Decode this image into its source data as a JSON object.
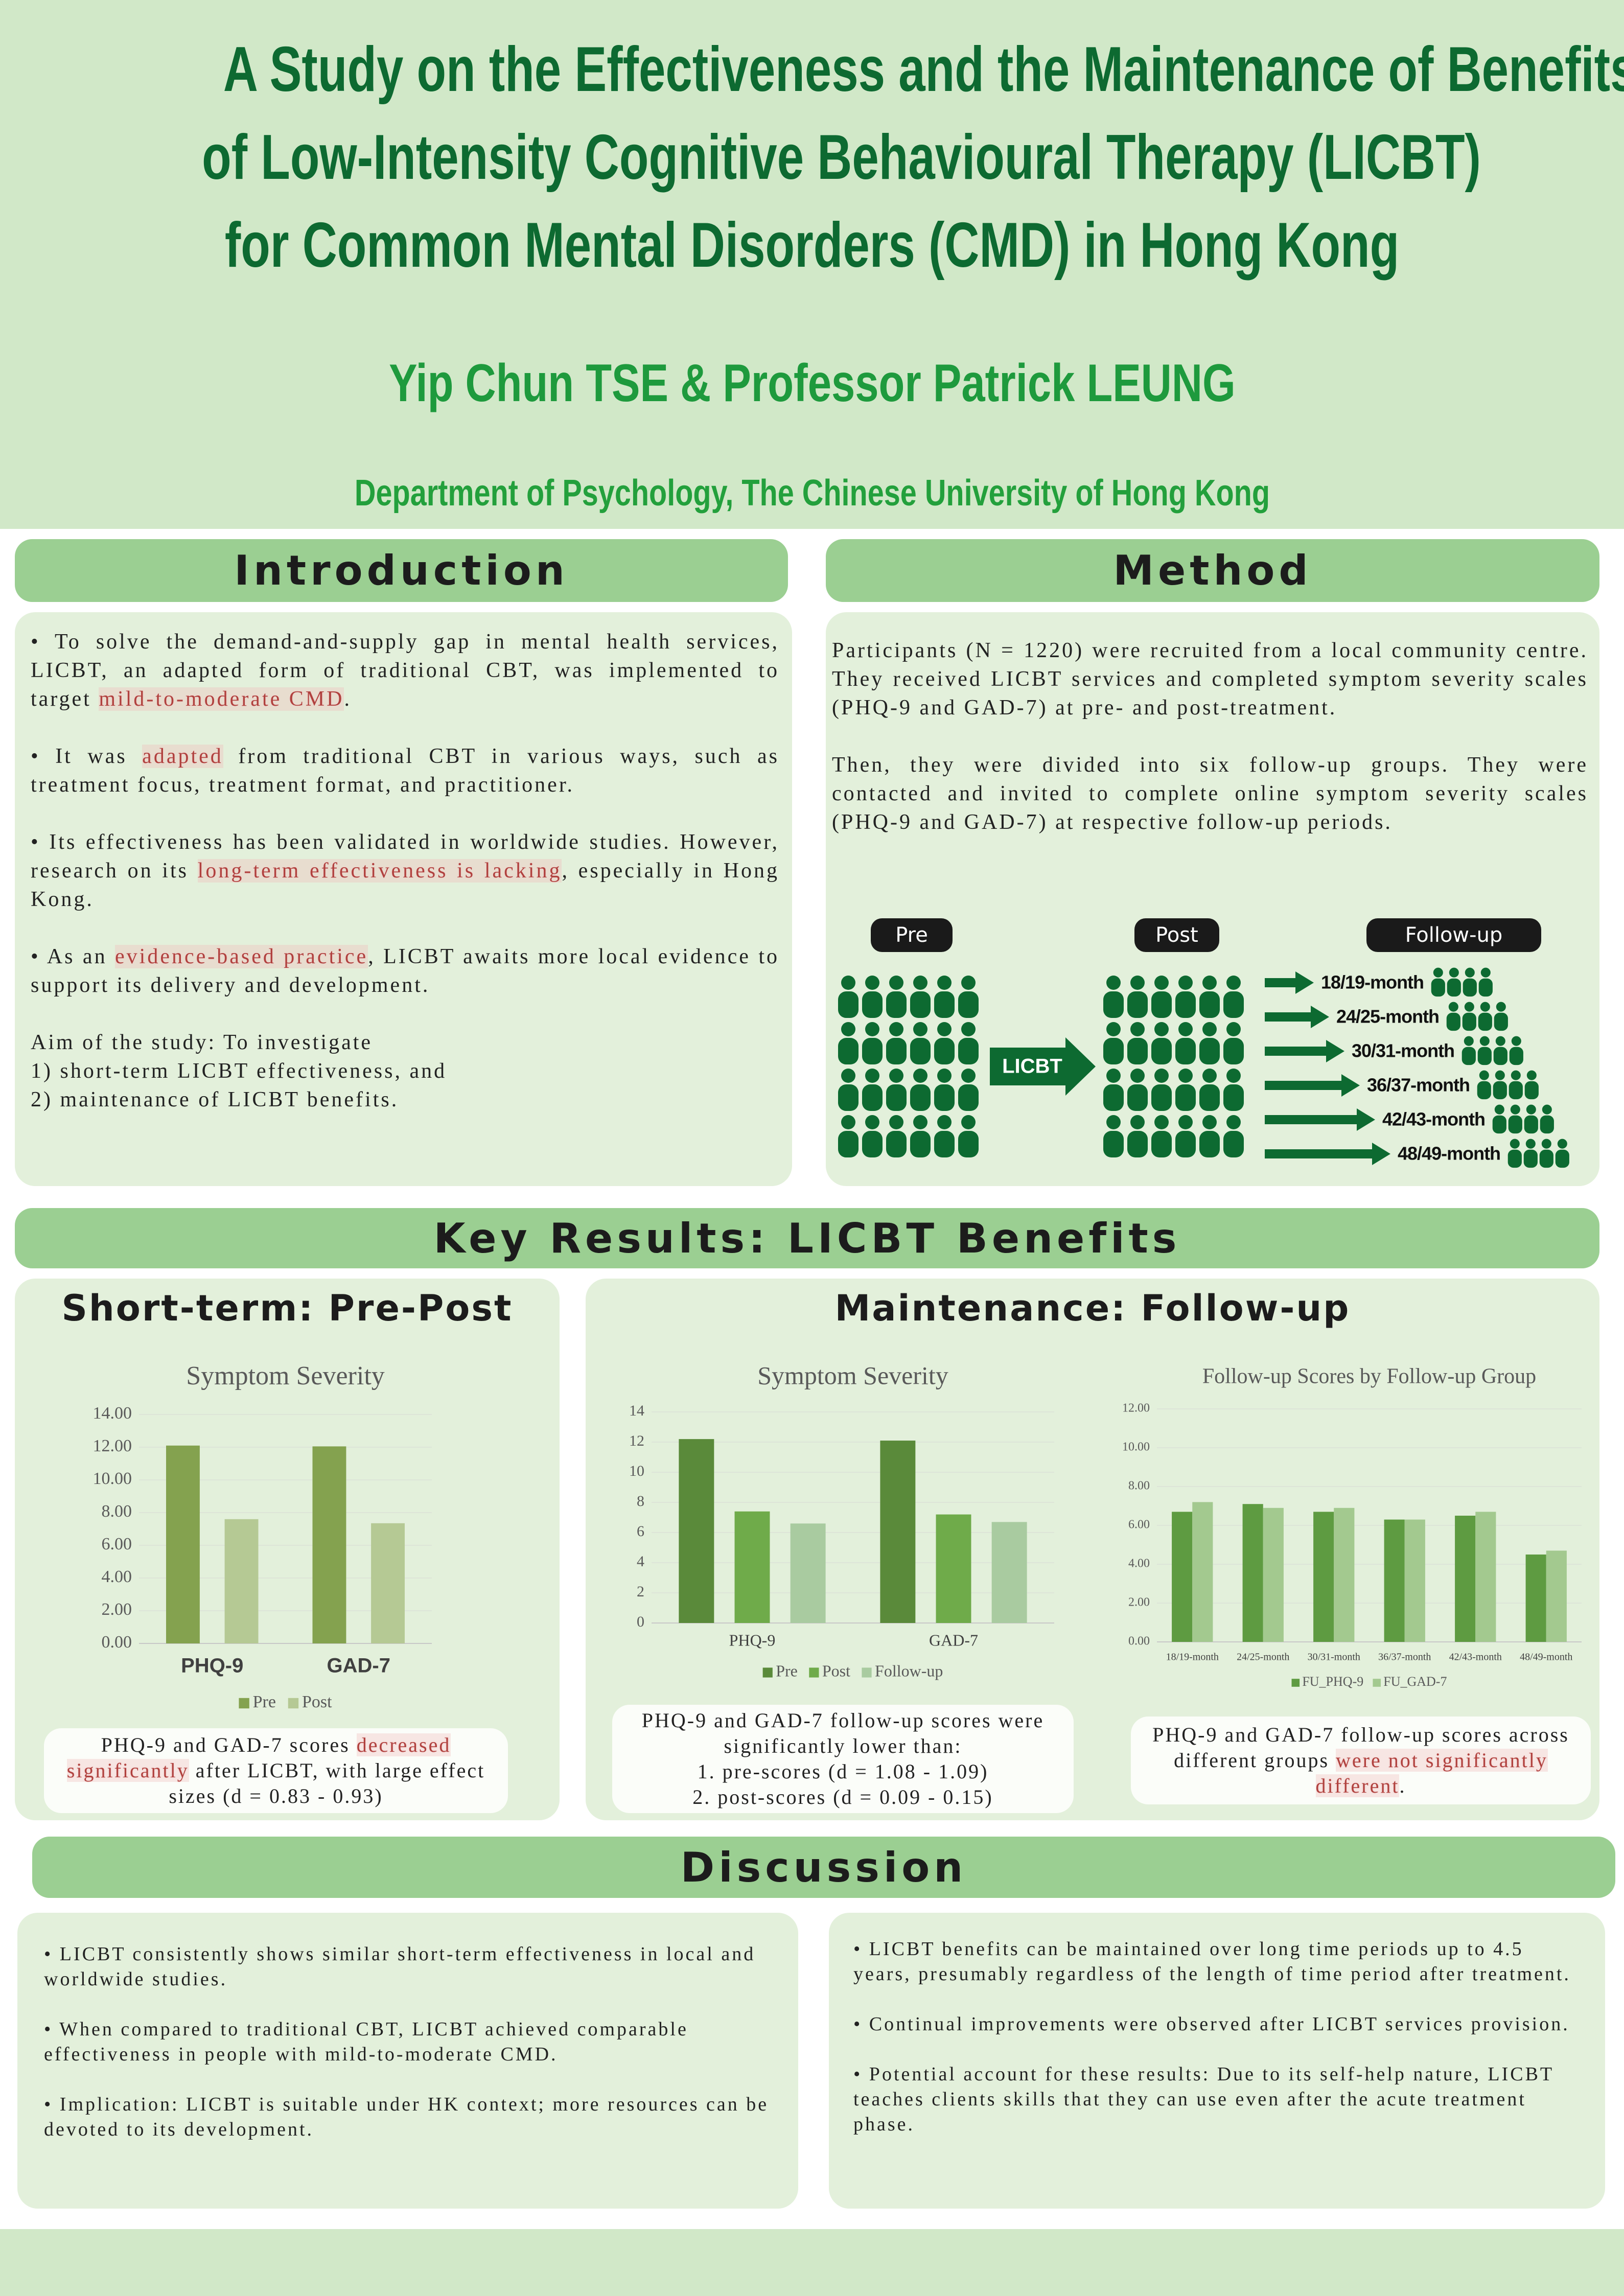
{
  "header": {
    "title_lines": [
      "A Study on the Effectiveness and the Maintenance of Benefits",
      "of Low-Intensity Cognitive Behavioural Therapy (LICBT)",
      "for Common Mental Disorders (CMD) in Hong Kong"
    ],
    "authors": "Yip Chun TSE & Professor Patrick LEUNG",
    "affiliation": "Department of Psychology, The Chinese University of Hong Kong"
  },
  "introduction": {
    "heading": "Introduction",
    "paragraphs": [
      [
        "• To solve the demand-and-supply gap in mental health services, LICBT, an adapted form of traditional CBT, was implemented to target ",
        {
          "text": "mild-to-moderate CMD",
          "highlight": true
        },
        "."
      ],
      [
        "• It was ",
        {
          "text": "adapted",
          "highlight": true
        },
        " from traditional CBT in various ways, such as treatment focus, treatment format, and practitioner."
      ],
      [
        "• Its effectiveness has been validated in worldwide studies. However, research on its ",
        {
          "text": "long-term effectiveness is lacking",
          "highlight": true
        },
        ", especially in Hong Kong."
      ],
      [
        "• As an ",
        {
          "text": "evidence-based practice",
          "highlight": true
        },
        ", LICBT awaits more local evidence to support its delivery and development."
      ]
    ],
    "aim_lines": [
      "Aim of the study: To investigate",
      "1) short-term LICBT effectiveness, and",
      "2) maintenance of LICBT benefits."
    ]
  },
  "method": {
    "heading": "Method",
    "paragraphs": [
      "Participants (N = 1220) were recruited from a local community centre. They received LICBT services and completed symptom severity scales (PHQ-9 and GAD-7) at pre- and post-treatment.",
      "Then, they were divided into six follow-up groups. They were contacted and invited to complete online symptom severity scales (PHQ-9 and GAD-7) at respective follow-up periods."
    ],
    "diagram": {
      "pre_label": "Pre",
      "post_label": "Post",
      "followup_label": "Follow-up",
      "arrow_label": "LICBT",
      "followup_groups": [
        "18/19-month",
        "24/25-month",
        "30/31-month",
        "36/37-month",
        "42/43-month",
        "48/49-month"
      ]
    }
  },
  "results": {
    "heading": "Key Results: LICBT Benefits",
    "short_term": {
      "heading": "Short-term: Pre-Post",
      "caption": [
        "PHQ-9 and GAD-7 scores ",
        {
          "text": "decreased significantly",
          "highlight": true
        },
        " after LICBT, with large effect sizes (d = 0.83 - 0.93)"
      ]
    },
    "maintenance": {
      "heading": "Maintenance: Follow-up",
      "caption_lines": [
        "PHQ-9 and GAD-7 follow-up scores were significantly lower than:",
        "1.  pre-scores (d = 1.08 - 1.09)",
        "2.  post-scores (d = 0.09 - 0.15)"
      ],
      "follow_up_caption": [
        "PHQ-9 and GAD-7 follow-up scores across different groups ",
        {
          "text": "were not significantly different",
          "highlight": true
        },
        "."
      ]
    }
  },
  "discussion": {
    "heading": "Discussion",
    "left": [
      "• LICBT consistently shows similar short-term effectiveness in local and worldwide studies.",
      "• When compared to traditional CBT, LICBT achieved comparable effectiveness in people with mild-to-moderate CMD.",
      "• Implication: LICBT is suitable under HK context; more resources can be devoted to its development."
    ],
    "right": [
      "• LICBT benefits can be maintained over long time periods up to 4.5 years, presumably regardless of the length of time period after treatment.",
      "• Continual improvements were observed after LICBT services provision.",
      "• Potential account for these results: Due to its self-help nature, LICBT teaches clients skills that they can use even after the acute treatment phase."
    ]
  },
  "chart_data": [
    {
      "type": "bar",
      "title": "Symptom Severity",
      "categories": [
        "PHQ-9",
        "GAD-7"
      ],
      "series": [
        {
          "name": "Pre",
          "color": "#84a24f",
          "values": [
            12.1,
            12.05
          ]
        },
        {
          "name": "Post",
          "color": "#b5c994",
          "values": [
            7.6,
            7.35
          ]
        }
      ],
      "ylim": [
        0,
        14
      ],
      "yticks": [
        {
          "value": 0,
          "label": "0.00"
        },
        {
          "value": 2,
          "label": "2.00"
        },
        {
          "value": 4,
          "label": "4.00"
        },
        {
          "value": 6,
          "label": "6.00"
        },
        {
          "value": 8,
          "label": "8.00"
        },
        {
          "value": 10,
          "label": "10.00"
        },
        {
          "value": 12,
          "label": "12.00"
        },
        {
          "value": 14,
          "label": "14.00"
        }
      ],
      "grid": true,
      "legend": "bottom"
    },
    {
      "type": "bar",
      "title": "Symptom Severity",
      "categories": [
        "PHQ-9",
        "GAD-7"
      ],
      "series": [
        {
          "name": "Pre",
          "color": "#5a8a3a",
          "values": [
            12.2,
            12.1
          ]
        },
        {
          "name": "Post",
          "color": "#6fab4a",
          "values": [
            7.4,
            7.2
          ]
        },
        {
          "name": "Follow-up",
          "color": "#a9cba0",
          "values": [
            6.6,
            6.7
          ]
        }
      ],
      "ylim": [
        0,
        14
      ],
      "yticks": [
        0,
        2,
        4,
        6,
        8,
        10,
        12,
        14
      ],
      "grid": true,
      "legend": "bottom"
    },
    {
      "type": "bar",
      "title": "Follow-up Scores by Follow-up Group",
      "categories": [
        "18/19-month",
        "24/25-month",
        "30/31-month",
        "36/37-month",
        "42/43-month",
        "48/49-month"
      ],
      "series": [
        {
          "name": "FU_PHQ-9",
          "color": "#5e9b41",
          "values": [
            6.7,
            7.1,
            6.7,
            6.3,
            6.5,
            4.5
          ]
        },
        {
          "name": "FU_GAD-7",
          "color": "#a3c98f",
          "values": [
            7.2,
            6.9,
            6.9,
            6.3,
            6.7,
            4.7
          ]
        }
      ],
      "ylim": [
        0,
        12
      ],
      "yticks": [
        {
          "value": 0,
          "label": "0.00"
        },
        {
          "value": 2,
          "label": "2.00"
        },
        {
          "value": 4,
          "label": "4.00"
        },
        {
          "value": 6,
          "label": "6.00"
        },
        {
          "value": 8,
          "label": "8.00"
        },
        {
          "value": 10,
          "label": "10.00"
        },
        {
          "value": 12,
          "label": "12.00"
        }
      ],
      "grid": true,
      "legend": "bottom"
    }
  ]
}
